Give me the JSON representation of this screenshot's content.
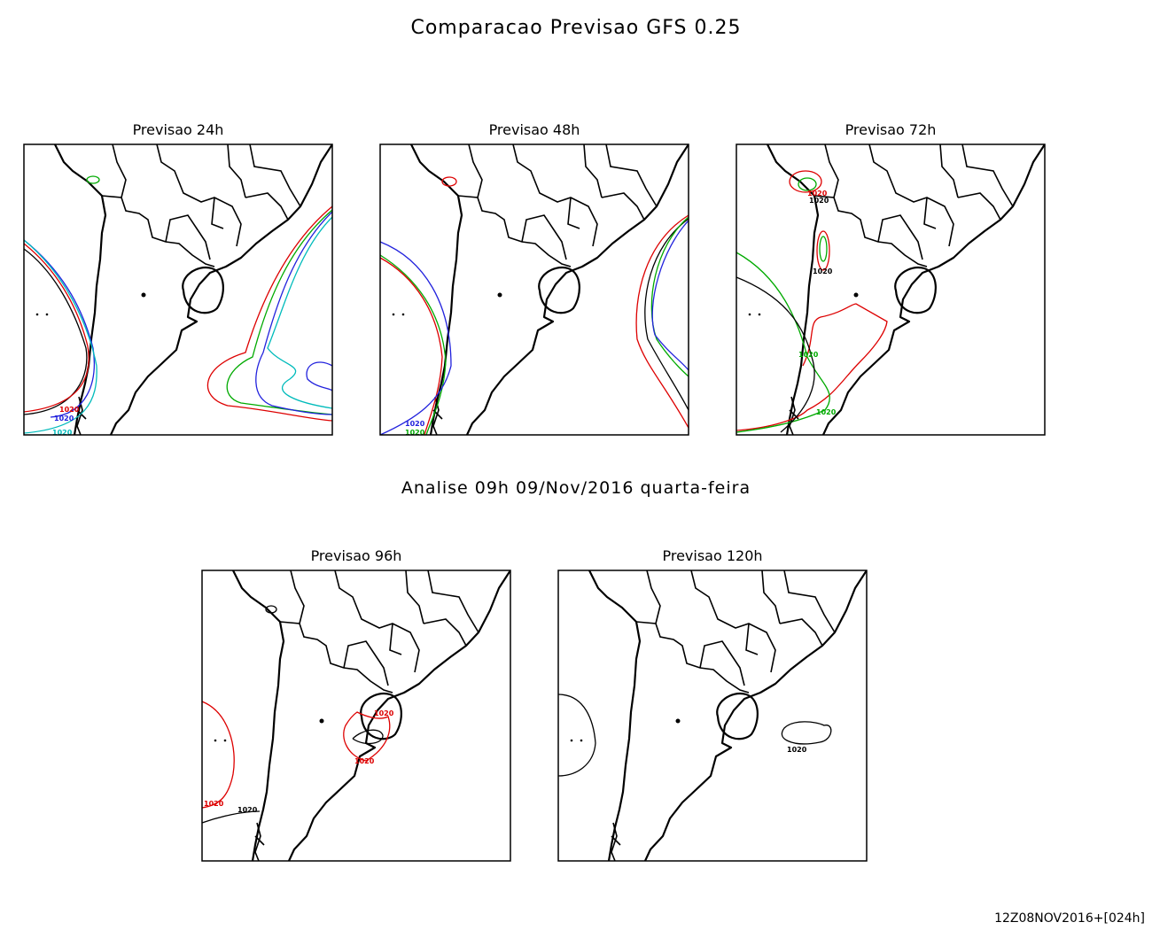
{
  "title": "Comparacao Previsao GFS 0.25",
  "analysis": "Analise 09h 09/Nov/2016 quarta-feira",
  "footer": "12Z08NOV2016+[024h]",
  "panels": [
    {
      "title": "Previsao 24h",
      "contour_labels": [
        "1020",
        "1020",
        "1020"
      ]
    },
    {
      "title": "Previsao 48h",
      "contour_labels": [
        "1020",
        "1020"
      ]
    },
    {
      "title": "Previsao 72h",
      "contour_labels": [
        "1020",
        "1020",
        "1020",
        "1020",
        "1020"
      ]
    },
    {
      "title": "Previsao 96h",
      "contour_labels": [
        "1020",
        "1020",
        "1020",
        "1020"
      ]
    },
    {
      "title": "Previsao 120h",
      "contour_labels": [
        "1020"
      ]
    }
  ]
}
